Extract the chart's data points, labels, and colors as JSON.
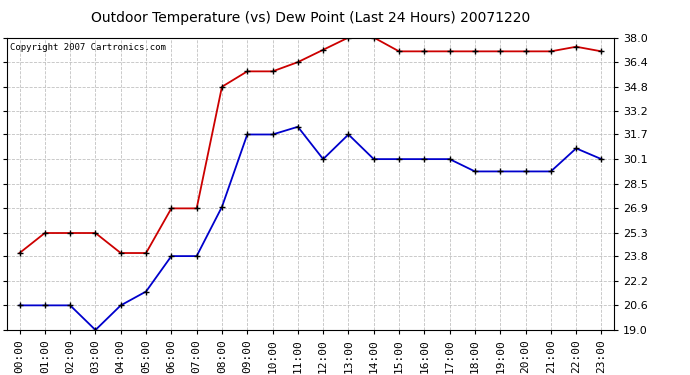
{
  "title": "Outdoor Temperature (vs) Dew Point (Last 24 Hours) 20071220",
  "copyright_text": "Copyright 2007 Cartronics.com",
  "hours": [
    "00:00",
    "01:00",
    "02:00",
    "03:00",
    "04:00",
    "05:00",
    "06:00",
    "07:00",
    "08:00",
    "09:00",
    "10:00",
    "11:00",
    "12:00",
    "13:00",
    "14:00",
    "15:00",
    "16:00",
    "17:00",
    "18:00",
    "19:00",
    "20:00",
    "21:00",
    "22:00",
    "23:00"
  ],
  "temp_red": [
    24.0,
    25.3,
    25.3,
    25.3,
    24.0,
    24.0,
    26.9,
    26.9,
    34.8,
    35.8,
    35.8,
    36.4,
    37.2,
    38.0,
    38.0,
    37.1,
    37.1,
    37.1,
    37.1,
    37.1,
    37.1,
    37.1,
    37.4,
    37.1
  ],
  "temp_blue": [
    20.6,
    20.6,
    20.6,
    19.0,
    20.6,
    21.5,
    23.8,
    23.8,
    27.0,
    31.7,
    31.7,
    32.2,
    30.1,
    31.7,
    30.1,
    30.1,
    30.1,
    30.1,
    29.3,
    29.3,
    29.3,
    29.3,
    30.8,
    30.1
  ],
  "ylim": [
    19.0,
    38.0
  ],
  "yticks": [
    19.0,
    20.6,
    22.2,
    23.8,
    25.3,
    26.9,
    28.5,
    30.1,
    31.7,
    33.2,
    34.8,
    36.4,
    38.0
  ],
  "red_color": "#cc0000",
  "blue_color": "#0000cc",
  "grid_color": "#bbbbbb",
  "bg_color": "#ffffff",
  "title_fontsize": 10,
  "copyright_fontsize": 6.5,
  "tick_fontsize": 8
}
